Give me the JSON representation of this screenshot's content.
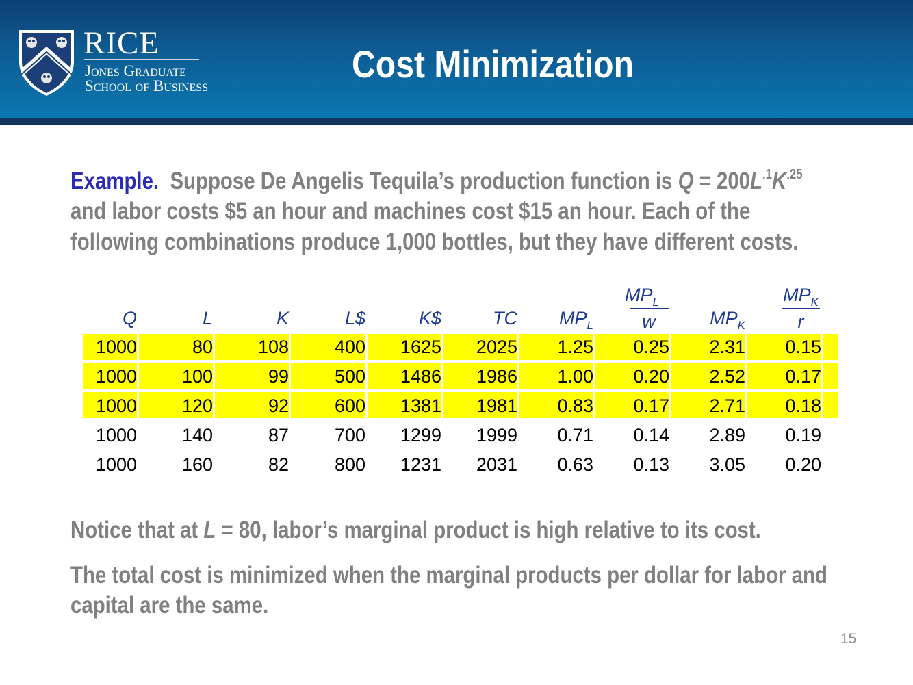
{
  "header": {
    "title": "Cost Minimization",
    "logo": {
      "name": "RICE",
      "line1": "Jones Graduate",
      "line2": "School of Business"
    }
  },
  "intro": {
    "lead": "Example.",
    "line1_text": "Suppose De Angelis Tequila’s production function is",
    "formula_q": "Q",
    "formula_eq": "= 200",
    "formula_l": "L",
    "formula_l_exp": ".1",
    "formula_k": "K",
    "formula_k_exp": ".25",
    "line2": "and labor costs $5 an hour and machines cost $15 an hour.  Each of the",
    "line3": "following combinations produce 1,000 bottles, but they have different costs."
  },
  "table": {
    "headers": {
      "q": "Q",
      "l": "L",
      "k": "K",
      "ld": "L$",
      "kd": "K$",
      "tc": "TC",
      "mpl": "MP",
      "mpl_sub": "L",
      "mplw_num": "MP",
      "mplw_num_sub": "L",
      "mplw_den": "w",
      "mpk": "MP",
      "mpk_sub": "K",
      "mpkr_num": "MP",
      "mpkr_num_sub": "K",
      "mpkr_den": "r"
    },
    "rows": [
      [
        "1000",
        "80",
        "108",
        "400",
        "1625",
        "2025",
        "1.25",
        "0.25",
        "2.31",
        "0.15"
      ],
      [
        "1000",
        "100",
        "99",
        "500",
        "1486",
        "1986",
        "1.00",
        "0.20",
        "2.52",
        "0.17"
      ],
      [
        "1000",
        "120",
        "92",
        "600",
        "1381",
        "1981",
        "0.83",
        "0.17",
        "2.71",
        "0.18"
      ],
      [
        "1000",
        "140",
        "87",
        "700",
        "1299",
        "1999",
        "0.71",
        "0.14",
        "2.89",
        "0.19"
      ],
      [
        "1000",
        "160",
        "82",
        "800",
        "1231",
        "2031",
        "0.63",
        "0.13",
        "3.05",
        "0.20"
      ]
    ],
    "highlight_color": "#ffff00"
  },
  "notes": {
    "note1_a": "Notice that at",
    "note1_l": "L",
    "note1_b": "= 80, labor’s marginal product is high relative to its cost.",
    "note2_line1": "The total cost is minimized when the marginal products per dollar for labor and",
    "note2_line2": "capital are the same."
  },
  "page_number": "15",
  "colors": {
    "header": "#0d5a91",
    "accent_text": "#2b2bb8",
    "body_text": "#808080",
    "table_header": "#1f3a93"
  }
}
